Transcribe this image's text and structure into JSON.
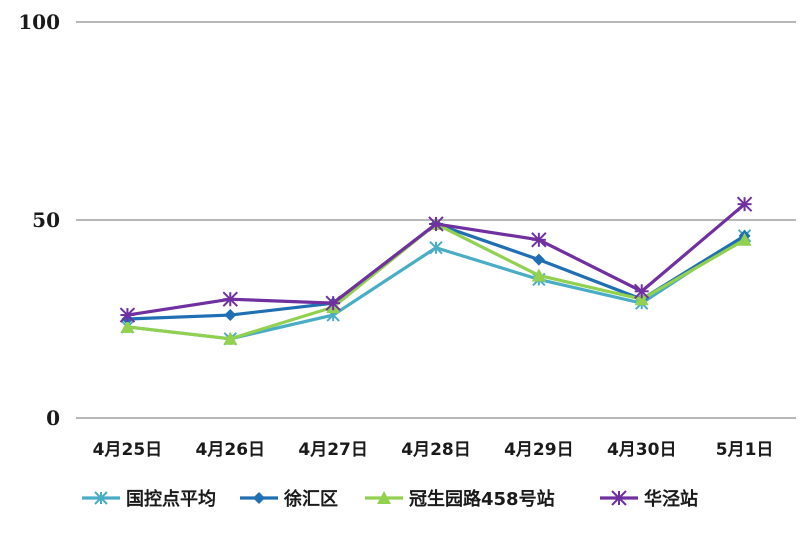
{
  "chart_data": {
    "type": "line",
    "categories": [
      "4月25日",
      "4月26日",
      "4月27日",
      "4月28日",
      "4月29日",
      "4月30日",
      "5月1日"
    ],
    "ylim": [
      0,
      100
    ],
    "yticks": [
      0,
      50,
      100
    ],
    "grid": true,
    "legend": "bottom",
    "series": [
      {
        "name": "国控点平均",
        "color": "#4bacc6",
        "marker": "asterisk",
        "values": [
          23,
          20,
          26,
          43,
          35,
          29,
          46
        ]
      },
      {
        "name": "徐汇区",
        "color": "#1f6fb2",
        "marker": "diamond",
        "values": [
          25,
          26,
          29,
          49,
          40,
          30,
          46
        ]
      },
      {
        "name": "冠生园路458号站",
        "color": "#92d050",
        "marker": "triangle",
        "values": [
          23,
          20,
          28,
          49,
          36,
          30,
          45
        ]
      },
      {
        "name": "华泾站",
        "color": "#7030a0",
        "marker": "star",
        "values": [
          26,
          30,
          29,
          49,
          45,
          32,
          54
        ]
      }
    ]
  }
}
